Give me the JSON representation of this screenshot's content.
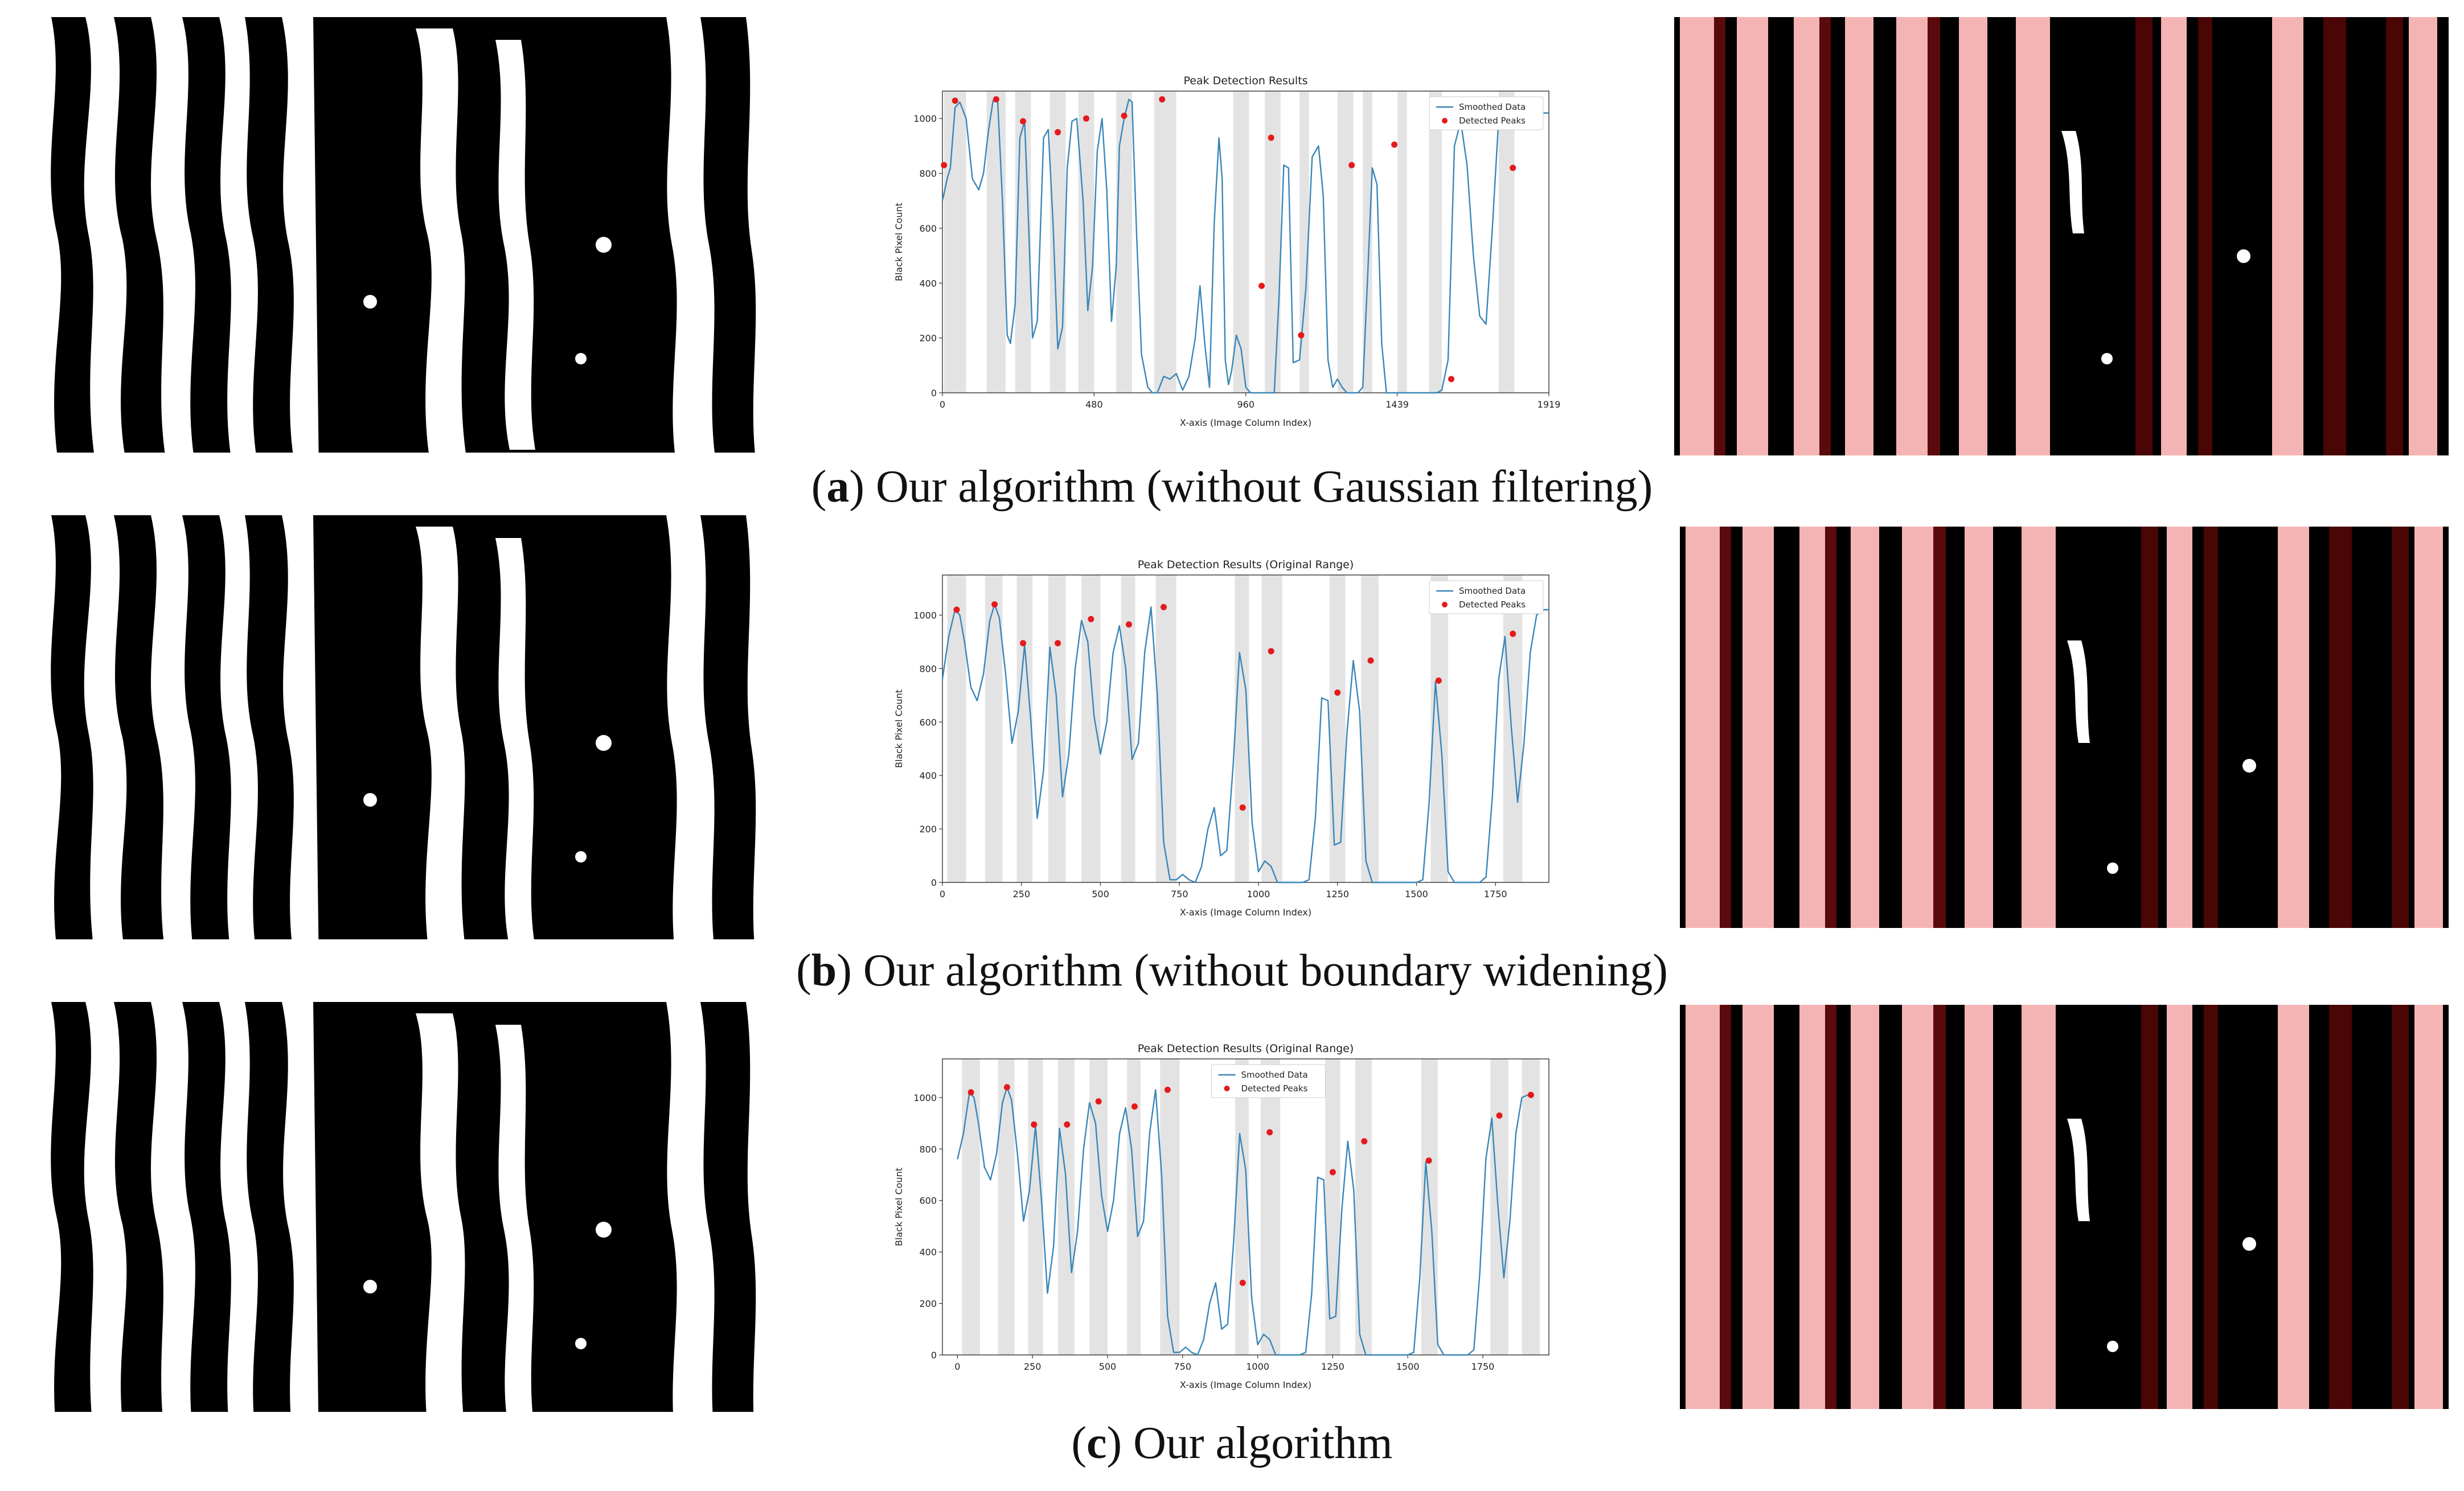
{
  "panels": [
    {
      "letter": "a",
      "caption_text": ") Our algorithm (without Gaussian filtering)",
      "chart_index": 0
    },
    {
      "letter": "b",
      "caption_text": ") Our algorithm (without boundary widening)",
      "chart_index": 1
    },
    {
      "letter": "c",
      "caption_text": ") Our algorithm",
      "chart_index": 2
    }
  ],
  "chart_data": [
    {
      "type": "line",
      "title": "Peak Detection Results",
      "xlabel": "X-axis (Image Column Index)",
      "ylabel": "Black Pixel Count",
      "xlim": [
        0,
        1919
      ],
      "ylim": [
        0,
        1100
      ],
      "xticks": [
        0,
        480,
        960,
        1439,
        1919
      ],
      "yticks": [
        0,
        200,
        400,
        600,
        800,
        1000
      ],
      "legend": [
        "Smoothed Data",
        "Detected Peaks"
      ],
      "legend_position": "top-right",
      "series_color": "#3a86b8",
      "peak_color": "#e41a1c",
      "band_color": "#e3e3e3",
      "x": [
        0,
        15,
        25,
        40,
        55,
        75,
        95,
        115,
        130,
        145,
        160,
        175,
        190,
        205,
        215,
        230,
        245,
        260,
        270,
        285,
        300,
        320,
        335,
        350,
        365,
        380,
        395,
        410,
        425,
        445,
        460,
        475,
        490,
        505,
        520,
        535,
        550,
        560,
        575,
        590,
        600,
        615,
        630,
        650,
        665,
        680,
        700,
        720,
        740,
        760,
        780,
        800,
        815,
        830,
        845,
        860,
        875,
        885,
        895,
        905,
        915,
        930,
        945,
        960,
        975,
        990,
        1005,
        1020,
        1035,
        1050,
        1065,
        1080,
        1095,
        1110,
        1130,
        1150,
        1170,
        1190,
        1205,
        1220,
        1235,
        1250,
        1265,
        1280,
        1300,
        1315,
        1330,
        1345,
        1360,
        1375,
        1390,
        1405,
        1420,
        1435,
        1455,
        1475,
        1490,
        1505,
        1520,
        1535,
        1550,
        1565,
        1580,
        1600,
        1620,
        1640,
        1660,
        1680,
        1700,
        1720,
        1740,
        1760,
        1775,
        1790,
        1805,
        1820,
        1840,
        1860,
        1880,
        1900,
        1919
      ],
      "values": [
        700,
        780,
        820,
        1040,
        1060,
        1000,
        780,
        740,
        800,
        950,
        1065,
        1060,
        700,
        210,
        180,
        320,
        930,
        990,
        700,
        200,
        260,
        930,
        960,
        620,
        160,
        240,
        820,
        990,
        1000,
        700,
        300,
        460,
        880,
        1000,
        740,
        260,
        460,
        900,
        1000,
        1070,
        1060,
        560,
        140,
        20,
        0,
        0,
        60,
        50,
        70,
        10,
        60,
        200,
        390,
        180,
        20,
        620,
        930,
        780,
        120,
        30,
        80,
        210,
        160,
        20,
        0,
        0,
        0,
        0,
        0,
        0,
        350,
        830,
        820,
        110,
        120,
        380,
        860,
        900,
        720,
        120,
        20,
        50,
        20,
        0,
        0,
        0,
        20,
        410,
        820,
        760,
        180,
        0,
        0,
        0,
        0,
        0,
        0,
        0,
        0,
        0,
        0,
        0,
        10,
        120,
        900,
        990,
        830,
        500,
        280,
        250,
        600,
        1000,
        1020,
        1020,
        1020,
        1020,
        1020,
        1020,
        1020,
        1020,
        1020
      ],
      "peaks_x": [
        5,
        40,
        170,
        255,
        365,
        455,
        575,
        695,
        1010,
        1040,
        1135,
        1295,
        1430,
        1610,
        1805
      ],
      "peaks_y": [
        830,
        1065,
        1070,
        990,
        950,
        1000,
        1010,
        1070,
        390,
        930,
        210,
        830,
        905,
        50,
        820
      ],
      "bands": [
        [
          5,
          75
        ],
        [
          140,
          200
        ],
        [
          230,
          280
        ],
        [
          340,
          390
        ],
        [
          430,
          480
        ],
        [
          550,
          600
        ],
        [
          670,
          740
        ],
        [
          920,
          970
        ],
        [
          1020,
          1070
        ],
        [
          1130,
          1160
        ],
        [
          1250,
          1300
        ],
        [
          1330,
          1360
        ],
        [
          1440,
          1470
        ],
        [
          1540,
          1580
        ],
        [
          1760,
          1810
        ]
      ]
    },
    {
      "type": "line",
      "title": "Peak Detection Results (Original Range)",
      "xlabel": "X-axis (Image Column Index)",
      "ylabel": "Black Pixel Count",
      "xlim": [
        0,
        1919
      ],
      "ylim": [
        0,
        1150
      ],
      "xticks": [
        0,
        250,
        500,
        750,
        1000,
        1250,
        1500,
        1750
      ],
      "yticks": [
        0,
        200,
        400,
        600,
        800,
        1000
      ],
      "legend": [
        "Smoothed Data",
        "Detected Peaks"
      ],
      "legend_position": "top-right",
      "series_color": "#3a86b8",
      "peak_color": "#e41a1c",
      "band_color": "#e3e3e3",
      "x": [
        0,
        20,
        40,
        55,
        70,
        90,
        110,
        130,
        150,
        165,
        180,
        200,
        220,
        240,
        260,
        280,
        300,
        320,
        340,
        360,
        380,
        400,
        420,
        440,
        460,
        480,
        500,
        520,
        540,
        560,
        580,
        600,
        620,
        640,
        660,
        680,
        700,
        720,
        740,
        760,
        780,
        800,
        820,
        840,
        860,
        880,
        900,
        920,
        940,
        960,
        980,
        1000,
        1020,
        1040,
        1060,
        1080,
        1100,
        1120,
        1140,
        1160,
        1180,
        1200,
        1220,
        1240,
        1260,
        1280,
        1300,
        1320,
        1340,
        1360,
        1380,
        1400,
        1420,
        1440,
        1460,
        1480,
        1500,
        1520,
        1540,
        1560,
        1580,
        1600,
        1620,
        1640,
        1660,
        1680,
        1700,
        1720,
        1740,
        1760,
        1780,
        1800,
        1820,
        1840,
        1860,
        1880,
        1900,
        1919
      ],
      "values": [
        760,
        920,
        1020,
        1000,
        900,
        730,
        680,
        780,
        980,
        1040,
        990,
        780,
        520,
        640,
        890,
        600,
        240,
        420,
        880,
        700,
        320,
        480,
        800,
        980,
        900,
        620,
        480,
        600,
        860,
        960,
        800,
        460,
        520,
        860,
        1030,
        700,
        150,
        10,
        10,
        30,
        10,
        0,
        60,
        200,
        280,
        100,
        120,
        440,
        860,
        720,
        220,
        40,
        80,
        60,
        0,
        0,
        0,
        0,
        0,
        10,
        240,
        690,
        680,
        140,
        150,
        560,
        830,
        640,
        80,
        0,
        0,
        0,
        0,
        0,
        0,
        0,
        0,
        10,
        300,
        750,
        480,
        40,
        0,
        0,
        0,
        0,
        0,
        20,
        320,
        760,
        920,
        580,
        300,
        520,
        860,
        1000,
        1020,
        1020
      ],
      "peaks_x": [
        45,
        165,
        255,
        365,
        470,
        590,
        700,
        950,
        1040,
        1250,
        1355,
        1570,
        1805
      ],
      "peaks_y": [
        1020,
        1040,
        895,
        895,
        985,
        965,
        1030,
        280,
        865,
        710,
        830,
        755,
        930
      ],
      "bands": [
        [
          15,
          75
        ],
        [
          135,
          190
        ],
        [
          235,
          285
        ],
        [
          335,
          390
        ],
        [
          440,
          500
        ],
        [
          565,
          610
        ],
        [
          675,
          740
        ],
        [
          925,
          970
        ],
        [
          1010,
          1075
        ],
        [
          1225,
          1275
        ],
        [
          1325,
          1380
        ],
        [
          1545,
          1600
        ],
        [
          1775,
          1835
        ]
      ]
    },
    {
      "type": "line",
      "title": "Peak Detection Results (Original Range)",
      "xlabel": "X-axis (Image Column Index)",
      "ylabel": "Black Pixel Count",
      "xlim": [
        -50,
        1970
      ],
      "ylim": [
        0,
        1150
      ],
      "xticks": [
        0,
        250,
        500,
        750,
        1000,
        1250,
        1500,
        1750
      ],
      "yticks": [
        0,
        200,
        400,
        600,
        800,
        1000
      ],
      "legend": [
        "Smoothed Data",
        "Detected Peaks"
      ],
      "legend_position": "top-center",
      "series_color": "#3a86b8",
      "peak_color": "#e41a1c",
      "band_color": "#e3e3e3",
      "x": [
        0,
        20,
        40,
        55,
        70,
        90,
        110,
        130,
        150,
        165,
        180,
        200,
        220,
        240,
        260,
        280,
        300,
        320,
        340,
        360,
        380,
        400,
        420,
        440,
        460,
        480,
        500,
        520,
        540,
        560,
        580,
        600,
        620,
        640,
        660,
        680,
        700,
        720,
        740,
        760,
        780,
        800,
        820,
        840,
        860,
        880,
        900,
        920,
        940,
        960,
        980,
        1000,
        1020,
        1040,
        1060,
        1080,
        1100,
        1120,
        1140,
        1160,
        1180,
        1200,
        1220,
        1240,
        1260,
        1280,
        1300,
        1320,
        1340,
        1360,
        1380,
        1400,
        1420,
        1440,
        1460,
        1480,
        1500,
        1520,
        1540,
        1560,
        1580,
        1600,
        1620,
        1640,
        1660,
        1680,
        1700,
        1720,
        1740,
        1760,
        1780,
        1800,
        1820,
        1840,
        1860,
        1880,
        1900,
        1919
      ],
      "values": [
        760,
        860,
        1020,
        1000,
        900,
        730,
        680,
        780,
        980,
        1040,
        990,
        780,
        520,
        640,
        890,
        600,
        240,
        420,
        880,
        700,
        320,
        480,
        800,
        980,
        900,
        620,
        480,
        600,
        860,
        960,
        800,
        460,
        520,
        860,
        1030,
        700,
        150,
        10,
        10,
        30,
        10,
        0,
        60,
        200,
        280,
        100,
        120,
        440,
        860,
        720,
        220,
        40,
        80,
        60,
        0,
        0,
        0,
        0,
        0,
        10,
        240,
        690,
        680,
        140,
        150,
        560,
        830,
        640,
        80,
        0,
        0,
        0,
        0,
        0,
        0,
        0,
        0,
        10,
        300,
        750,
        480,
        40,
        0,
        0,
        0,
        0,
        0,
        20,
        320,
        760,
        920,
        580,
        300,
        520,
        860,
        1000,
        1010,
        1010
      ],
      "peaks_x": [
        45,
        165,
        255,
        365,
        470,
        590,
        700,
        950,
        1040,
        1250,
        1355,
        1570,
        1805,
        1910
      ],
      "peaks_y": [
        1020,
        1040,
        895,
        895,
        985,
        965,
        1030,
        280,
        865,
        710,
        830,
        755,
        930,
        1010
      ],
      "bands": [
        [
          15,
          75
        ],
        [
          135,
          190
        ],
        [
          235,
          285
        ],
        [
          335,
          390
        ],
        [
          440,
          500
        ],
        [
          565,
          610
        ],
        [
          675,
          740
        ],
        [
          925,
          970
        ],
        [
          1010,
          1075
        ],
        [
          1225,
          1275
        ],
        [
          1325,
          1380
        ],
        [
          1545,
          1600
        ],
        [
          1775,
          1835
        ],
        [
          1880,
          1940
        ]
      ]
    }
  ]
}
